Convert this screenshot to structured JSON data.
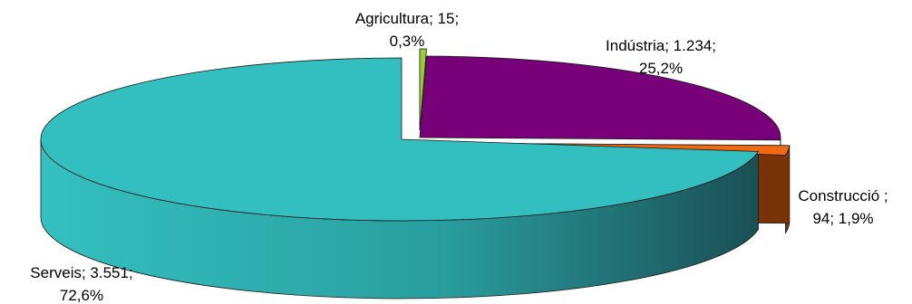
{
  "chart_data": {
    "type": "pie",
    "style": "3d-exploded",
    "title": "",
    "slices": [
      {
        "category": "Agricultura",
        "value": "15",
        "percent": 0.3,
        "percent_label": "0,3%",
        "color": "#9ACD32",
        "side_color": "#5E7F1D"
      },
      {
        "category": "Indústria",
        "value": "1.234",
        "percent": 25.2,
        "percent_label": "25,2%",
        "color": "#780078",
        "side_color": "#4A004A"
      },
      {
        "category": "Construcció ",
        "value": "94",
        "percent": 1.9,
        "percent_label": "1,9%",
        "color": "#F26A0F",
        "side_color": "#7A3208"
      },
      {
        "category": "Serveis",
        "value": "3.551",
        "percent": 72.6,
        "percent_label": "72,6%",
        "color": "#33BFBF",
        "side_color": "#1E6E6E"
      }
    ],
    "labels": [
      {
        "line1": "Agricultura; 15;",
        "line2": "0,3%"
      },
      {
        "line1": "Indústria; 1.234;",
        "line2": "25,2%"
      },
      {
        "line1": "Construcció ;",
        "line2": "94; 1,9%"
      },
      {
        "line1": "Serveis; 3.551;",
        "line2": "72,6%"
      }
    ],
    "legend": "none"
  }
}
